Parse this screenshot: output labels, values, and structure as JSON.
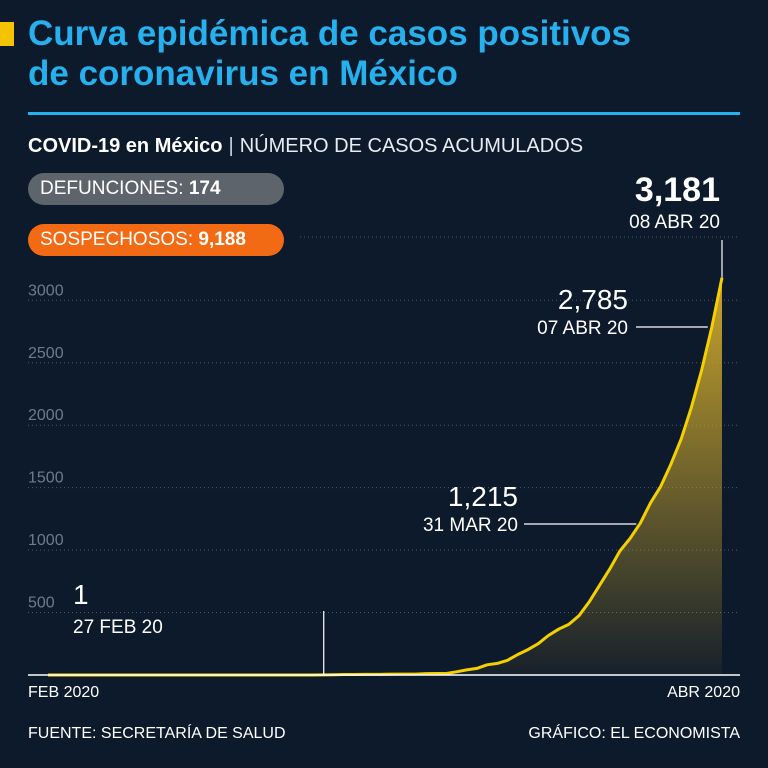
{
  "header": {
    "title_line1": "Curva epidémica de casos positivos",
    "title_line2": "de coronavirus en México",
    "subtitle_bold": "COVID-19 en México",
    "subtitle_sep": "|",
    "subtitle_rest": "NÚMERO DE CASOS ACUMULADOS"
  },
  "badges": {
    "deaths_label": "DEFUNCIONES:",
    "deaths_value": "174",
    "suspects_label": "SOSPECHOSOS:",
    "suspects_value": "9,188"
  },
  "footer": {
    "source": "FUENTE: SECRETARÍA DE SALUD",
    "credit": "GRÁFICO: EL ECONOMISTA"
  },
  "colors": {
    "background": "#0d1a2b",
    "title": "#27b0ee",
    "line": "#f5d000",
    "area_top": "#c9a52c",
    "deaths_badge": "#5d646b",
    "suspects_badge": "#f36a14"
  },
  "chart_data": {
    "type": "area",
    "title": "NÚMERO DE CASOS ACUMULADOS",
    "xlabel": "",
    "ylabel": "",
    "x_start_label": "FEB 2020",
    "x_end_label": "ABR 2020",
    "ylim": [
      0,
      3200
    ],
    "yticks": [
      500,
      1000,
      1500,
      2000,
      2500,
      3000
    ],
    "grid": true,
    "series": [
      {
        "name": "Casos acumulados",
        "values": [
          0,
          0,
          0,
          0,
          0,
          0,
          0,
          0,
          0,
          0,
          0,
          0,
          0,
          0,
          0,
          0,
          0,
          0,
          0,
          0,
          0,
          0,
          0,
          0,
          0,
          0,
          0,
          1,
          2,
          4,
          4,
          5,
          5,
          6,
          7,
          7,
          7,
          11,
          12,
          12,
          26,
          41,
          53,
          82,
          93,
          118,
          164,
          203,
          251,
          316,
          367,
          405,
          475,
          585,
          717,
          848,
          993,
          1094,
          1215,
          1378,
          1510,
          1688,
          1890,
          2143,
          2439,
          2785,
          3181
        ]
      }
    ],
    "annotations": [
      {
        "value": "1",
        "date": "27 FEB 20",
        "index": 27
      },
      {
        "value": "1,215",
        "date": "31 MAR 20",
        "index": 58
      },
      {
        "value": "2,785",
        "date": "07 ABR 20",
        "index": 65
      },
      {
        "value": "3,181",
        "date": "08 ABR 20",
        "index": 66
      }
    ]
  }
}
